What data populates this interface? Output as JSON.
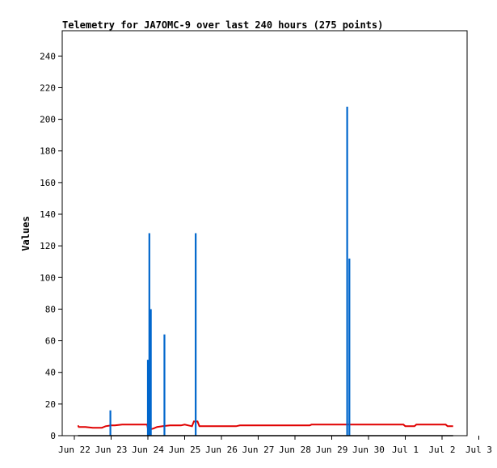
{
  "chart_data": {
    "type": "line",
    "title": "Telemetry for JA7OMC-9 over last 240 hours (275 points)",
    "xlabel": "",
    "ylabel": "Values",
    "x_ticks": [
      "Jun 22",
      "Jun 23",
      "Jun 24",
      "Jun 25",
      "Jun 26",
      "Jun 27",
      "Jun 28",
      "Jun 29",
      "Jun 30",
      "Jul 1",
      "Jul 2",
      "Jul 3"
    ],
    "y_ticks": [
      0,
      20,
      40,
      60,
      80,
      100,
      120,
      140,
      160,
      180,
      200,
      220,
      240
    ],
    "xlim_days": [
      0,
      11
    ],
    "ylim": [
      0,
      256
    ],
    "grid": false,
    "series": [
      {
        "color": "#e00000",
        "style": "line",
        "points": [
          [
            0.1,
            6.5
          ],
          [
            0.12,
            5.5
          ],
          [
            0.3,
            5.5
          ],
          [
            0.5,
            5.0
          ],
          [
            0.75,
            5.0
          ],
          [
            0.85,
            6.0
          ],
          [
            1.0,
            6.5
          ],
          [
            1.1,
            6.5
          ],
          [
            1.3,
            7.0
          ],
          [
            1.8,
            7.0
          ],
          [
            1.98,
            7.0
          ],
          [
            2.0,
            4.5
          ],
          [
            2.05,
            4.0
          ],
          [
            2.15,
            4.5
          ],
          [
            2.25,
            5.5
          ],
          [
            2.4,
            6.0
          ],
          [
            2.6,
            6.5
          ],
          [
            2.9,
            6.5
          ],
          [
            3.0,
            7.0
          ],
          [
            3.1,
            6.5
          ],
          [
            3.2,
            6.0
          ],
          [
            3.25,
            9.0
          ],
          [
            3.35,
            9.0
          ],
          [
            3.4,
            6.0
          ],
          [
            3.6,
            6.0
          ],
          [
            4.0,
            6.0
          ],
          [
            4.4,
            6.0
          ],
          [
            4.5,
            6.5
          ],
          [
            5.0,
            6.5
          ],
          [
            6.0,
            6.5
          ],
          [
            6.4,
            6.5
          ],
          [
            6.45,
            7.0
          ],
          [
            7.0,
            7.0
          ],
          [
            8.0,
            7.0
          ],
          [
            8.95,
            7.0
          ],
          [
            9.0,
            6.0
          ],
          [
            9.25,
            6.0
          ],
          [
            9.3,
            7.0
          ],
          [
            10.1,
            7.0
          ],
          [
            10.15,
            6.0
          ],
          [
            10.3,
            6.0
          ]
        ]
      },
      {
        "color": "#0066cc",
        "style": "spikes",
        "points": [
          [
            0.98,
            16
          ],
          [
            2.0,
            48
          ],
          [
            2.04,
            128
          ],
          [
            2.08,
            80
          ],
          [
            2.45,
            64
          ],
          [
            3.3,
            128
          ],
          [
            7.42,
            208
          ],
          [
            7.48,
            112
          ]
        ]
      },
      {
        "color": "#000000",
        "style": "line",
        "points": [
          [
            0.1,
            0
          ],
          [
            10.3,
            0
          ]
        ]
      }
    ]
  }
}
